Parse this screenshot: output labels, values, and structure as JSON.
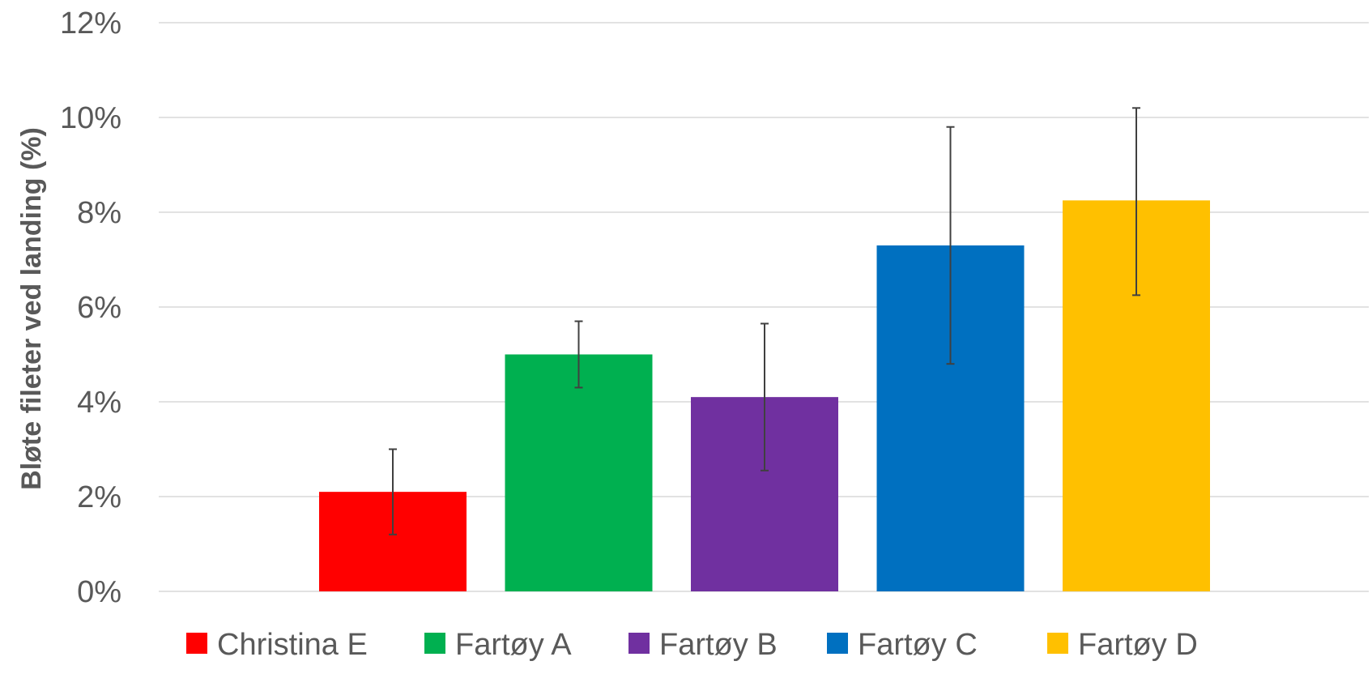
{
  "chart_data": {
    "type": "bar",
    "title": "",
    "xlabel": "",
    "ylabel": "Bløte fileter ved landing (%)",
    "ylim": [
      0,
      12
    ],
    "yticks": [
      0,
      2,
      4,
      6,
      8,
      10,
      12
    ],
    "ytick_labels": [
      "0%",
      "2%",
      "4%",
      "6%",
      "8%",
      "10%",
      "12%"
    ],
    "grid": true,
    "legend_position": "bottom",
    "series": [
      {
        "name": "Christina E",
        "value": 2.1,
        "error_low": 1.2,
        "error_high": 3.0,
        "color": "#ff0000"
      },
      {
        "name": "Fartøy A",
        "value": 5.0,
        "error_low": 4.3,
        "error_high": 5.7,
        "color": "#00b050"
      },
      {
        "name": "Fartøy B",
        "value": 4.1,
        "error_low": 2.55,
        "error_high": 5.65,
        "color": "#7030a0"
      },
      {
        "name": "Fartøy C",
        "value": 7.3,
        "error_low": 4.8,
        "error_high": 9.8,
        "color": "#0070c0"
      },
      {
        "name": "Fartøy D",
        "value": 8.25,
        "error_low": 6.25,
        "error_high": 10.2,
        "color": "#ffc000"
      }
    ]
  }
}
